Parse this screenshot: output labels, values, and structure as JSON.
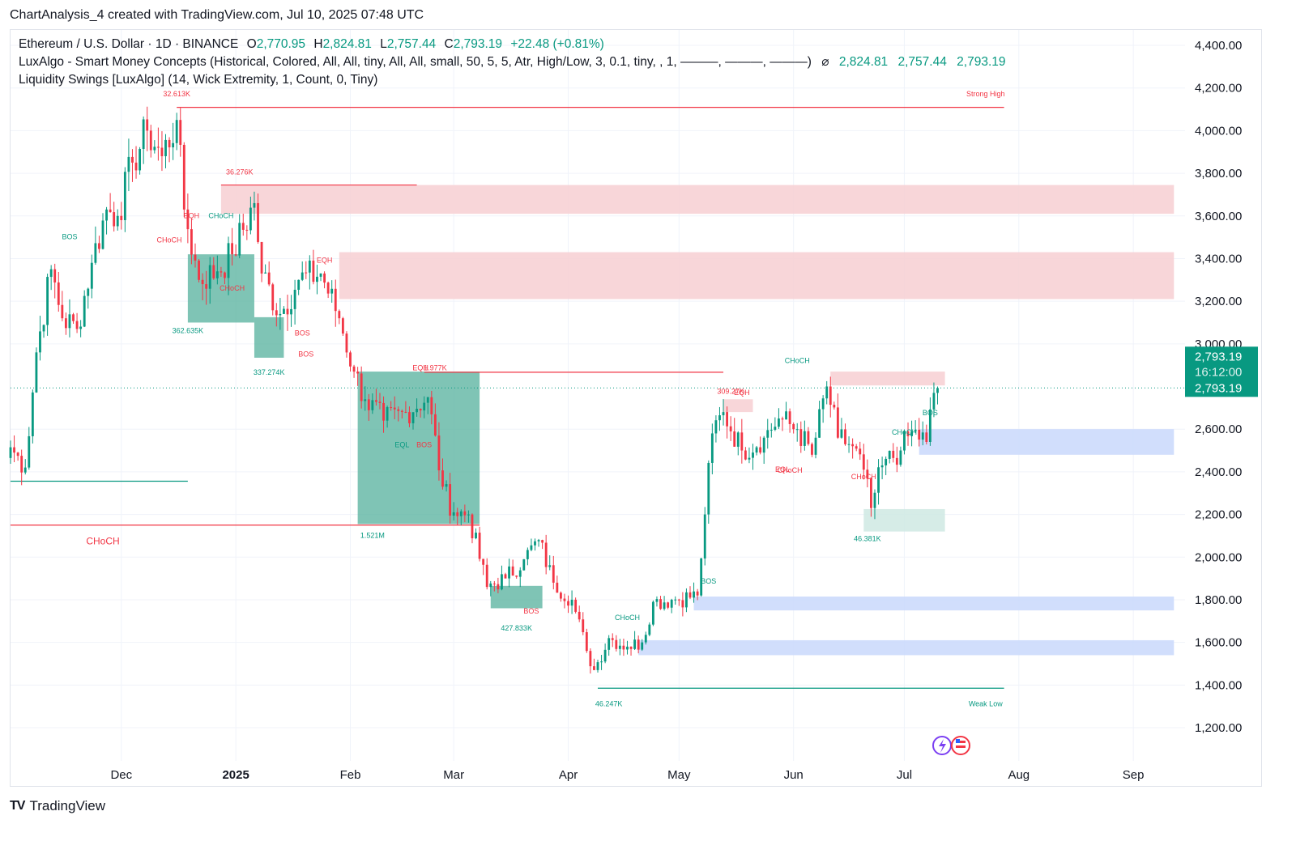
{
  "header": {
    "text": "ChartAnalysis_4 created with TradingView.com, Jul 10, 2025 07:48 UTC"
  },
  "legend": {
    "symbol": "Ethereum / U.S. Dollar · 1D · BINANCE",
    "o_label": "O",
    "o_value": "2,770.95",
    "h_label": "H",
    "h_value": "2,824.81",
    "l_label": "L",
    "l_value": "2,757.44",
    "c_label": "C",
    "c_value": "2,793.19",
    "change": "+22.48 (+0.81%)",
    "indicator1": "LuxAlgo - Smart Money Concepts (Historical, Colored, All, All, tiny, All, All, small, 50, 5, 5, Atr, High/Low, 3, 0.1, tiny, , 1, ———, ———, ———)",
    "indicator1_symbol": "⌀",
    "indicator1_values": [
      "2,824.81",
      "2,757.44",
      "2,793.19"
    ],
    "indicator2": "Liquidity Swings [LuxAlgo] (14, Wick Extremity, 1, Count, 0, Tiny)"
  },
  "footer": {
    "brand": "TradingView",
    "logo": "TV"
  },
  "colors": {
    "up": "#089981",
    "down": "#f23645",
    "zone_red": "#f7cfd2",
    "zone_blue": "#c9d8fb",
    "zone_green": "#5fb5a3",
    "price_tag": "#089981"
  },
  "chart_data": {
    "type": "candlestick",
    "title": "Ethereum / U.S. Dollar · 1D · BINANCE",
    "y_range": [
      1100,
      4500
    ],
    "y_ticks": [
      4400,
      4200,
      4000,
      3800,
      3600,
      3400,
      3200,
      3000,
      2600,
      2400,
      2200,
      2000,
      1800,
      1600,
      1400,
      1200
    ],
    "y_tick_labels": [
      "4,400.00",
      "4,200.00",
      "4,000.00",
      "3,800.00",
      "3,600.00",
      "3,400.00",
      "3,200.00",
      "3,000.00",
      "2,600.00",
      "2,400.00",
      "2,200.00",
      "2,000.00",
      "1,800.00",
      "1,600.00",
      "1,400.00",
      "1,200.00"
    ],
    "x_range": [
      "2024-11-01",
      "2025-09-15"
    ],
    "x_ticks": [
      {
        "date": "2024-12-01",
        "label": "Dec",
        "bold": false
      },
      {
        "date": "2025-01-01",
        "label": "2025",
        "bold": true
      },
      {
        "date": "2025-02-01",
        "label": "Feb",
        "bold": false
      },
      {
        "date": "2025-03-01",
        "label": "Mar",
        "bold": false
      },
      {
        "date": "2025-04-01",
        "label": "Apr",
        "bold": false
      },
      {
        "date": "2025-05-01",
        "label": "May",
        "bold": false
      },
      {
        "date": "2025-06-01",
        "label": "Jun",
        "bold": false
      },
      {
        "date": "2025-07-01",
        "label": "Jul",
        "bold": false
      },
      {
        "date": "2025-08-01",
        "label": "Aug",
        "bold": false
      },
      {
        "date": "2025-09-01",
        "label": "Sep",
        "bold": false
      }
    ],
    "last_price": 2793.19,
    "price_tag": {
      "price": "2,793.19",
      "countdown": "16:12:00",
      "price2": "2,793.19"
    },
    "zones": [
      {
        "from": "2024-12-28",
        "to": "2025-09-12",
        "low": 3610,
        "high": 3745,
        "kind": "supply"
      },
      {
        "from": "2025-01-29",
        "to": "2025-09-12",
        "low": 3210,
        "high": 3430,
        "kind": "supply"
      },
      {
        "from": "2025-06-11",
        "to": "2025-07-12",
        "low": 2805,
        "high": 2870,
        "kind": "supply"
      },
      {
        "from": "2025-05-13",
        "to": "2025-05-21",
        "low": 2680,
        "high": 2740,
        "kind": "supply"
      },
      {
        "from": "2025-07-05",
        "to": "2025-09-12",
        "low": 2480,
        "high": 2600,
        "kind": "demand"
      },
      {
        "from": "2025-05-05",
        "to": "2025-09-12",
        "low": 1750,
        "high": 1815,
        "kind": "demand"
      },
      {
        "from": "2025-04-20",
        "to": "2025-09-12",
        "low": 1540,
        "high": 1610,
        "kind": "demand"
      },
      {
        "from": "2024-12-19",
        "to": "2025-01-06",
        "low": 3100,
        "high": 3420,
        "kind": "volume"
      },
      {
        "from": "2025-01-06",
        "to": "2025-01-14",
        "low": 2935,
        "high": 3125,
        "kind": "volume"
      },
      {
        "from": "2025-02-03",
        "to": "2025-03-08",
        "low": 2155,
        "high": 2870,
        "kind": "volume"
      },
      {
        "from": "2025-03-11",
        "to": "2025-03-25",
        "low": 1760,
        "high": 1865,
        "kind": "volume"
      },
      {
        "from": "2025-06-20",
        "to": "2025-07-12",
        "low": 2120,
        "high": 2225,
        "kind": "volume_light"
      }
    ],
    "lines": [
      {
        "from": "2024-12-16",
        "to": "2025-07-28",
        "price": 4109,
        "color": "down"
      },
      {
        "from": "2024-12-28",
        "to": "2025-02-19",
        "price": 3745,
        "color": "down"
      },
      {
        "from": "2025-02-21",
        "to": "2025-05-13",
        "price": 2867,
        "color": "down"
      },
      {
        "from": "2024-11-01",
        "to": "2025-03-08",
        "price": 2150,
        "color": "down"
      },
      {
        "from": "2024-11-01",
        "to": "2024-12-19",
        "price": 2356,
        "color": "up"
      },
      {
        "from": "2025-04-09",
        "to": "2025-07-28",
        "price": 1385,
        "color": "up"
      }
    ],
    "labels": [
      {
        "date": "2024-12-16",
        "price": 4160,
        "text": "32.613K",
        "color": "down",
        "size": 9
      },
      {
        "date": "2025-07-23",
        "price": 4160,
        "text": "Strong High",
        "color": "down",
        "size": 9
      },
      {
        "date": "2025-01-02",
        "price": 3795,
        "text": "36.276K",
        "color": "down",
        "size": 9
      },
      {
        "date": "2024-12-20",
        "price": 3590,
        "text": "EQH",
        "color": "down",
        "size": 9
      },
      {
        "date": "2024-12-28",
        "price": 3590,
        "text": "CHoCH",
        "color": "up",
        "size": 9
      },
      {
        "date": "2024-12-14",
        "price": 3475,
        "text": "CHoCH",
        "color": "down",
        "size": 9
      },
      {
        "date": "2024-11-17",
        "price": 3490,
        "text": "BOS",
        "color": "up",
        "size": 9
      },
      {
        "date": "2025-01-25",
        "price": 3380,
        "text": "EQH",
        "color": "down",
        "size": 9
      },
      {
        "date": "2024-12-31",
        "price": 3250,
        "text": "CHoCH",
        "color": "down",
        "size": 9
      },
      {
        "date": "2024-12-19",
        "price": 3050,
        "text": "362.635K",
        "color": "up",
        "size": 9
      },
      {
        "date": "2025-01-19",
        "price": 3040,
        "text": "BOS",
        "color": "down",
        "size": 9
      },
      {
        "date": "2025-01-20",
        "price": 2940,
        "text": "BOS",
        "color": "down",
        "size": 9
      },
      {
        "date": "2025-01-10",
        "price": 2855,
        "text": "337.274K",
        "color": "up",
        "size": 9
      },
      {
        "date": "2025-02-20",
        "price": 2875,
        "text": "EQH",
        "color": "down",
        "size": 9
      },
      {
        "date": "2025-02-24",
        "price": 2875,
        "text": "1.977K",
        "color": "down",
        "size": 9
      },
      {
        "date": "2025-02-15",
        "price": 2515,
        "text": "EQL",
        "color": "up",
        "size": 9
      },
      {
        "date": "2025-02-21",
        "price": 2515,
        "text": "BOS",
        "color": "down",
        "size": 9
      },
      {
        "date": "2024-11-26",
        "price": 2060,
        "text": "CHoCH",
        "color": "down",
        "size": 12
      },
      {
        "date": "2025-02-07",
        "price": 2090,
        "text": "1.521M",
        "color": "up",
        "size": 9
      },
      {
        "date": "2025-03-22",
        "price": 1735,
        "text": "BOS",
        "color": "down",
        "size": 9
      },
      {
        "date": "2025-03-18",
        "price": 1655,
        "text": "427.833K",
        "color": "up",
        "size": 9
      },
      {
        "date": "2025-04-17",
        "price": 1705,
        "text": "CHoCH",
        "color": "up",
        "size": 9
      },
      {
        "date": "2025-05-09",
        "price": 1875,
        "text": "BOS",
        "color": "up",
        "size": 9
      },
      {
        "date": "2025-04-12",
        "price": 1300,
        "text": "46.247K",
        "color": "up",
        "size": 9
      },
      {
        "date": "2025-07-23",
        "price": 1300,
        "text": "Weak Low",
        "color": "up",
        "size": 9
      },
      {
        "date": "2025-05-15",
        "price": 2765,
        "text": "309.27K",
        "color": "down",
        "size": 9
      },
      {
        "date": "2025-05-18",
        "price": 2760,
        "text": "EQH",
        "color": "down",
        "size": 9
      },
      {
        "date": "2025-06-02",
        "price": 2910,
        "text": "CHoCH",
        "color": "up",
        "size": 9
      },
      {
        "date": "2025-05-29",
        "price": 2400,
        "text": "EQL",
        "color": "down",
        "size": 9
      },
      {
        "date": "2025-05-31",
        "price": 2395,
        "text": "CHoCH",
        "color": "down",
        "size": 9
      },
      {
        "date": "2025-06-20",
        "price": 2365,
        "text": "CHoCH",
        "color": "down",
        "size": 9
      },
      {
        "date": "2025-07-01",
        "price": 2575,
        "text": "CHoCH",
        "color": "up",
        "size": 9
      },
      {
        "date": "2025-07-08",
        "price": 2665,
        "text": "BOS",
        "color": "up",
        "size": 9
      },
      {
        "date": "2025-06-21",
        "price": 2075,
        "text": "46.381K",
        "color": "up",
        "size": 9
      }
    ],
    "anchors": [
      {
        "date": "2024-11-01",
        "close": 2515
      },
      {
        "date": "2024-11-05",
        "close": 2420
      },
      {
        "date": "2024-11-08",
        "close": 2960
      },
      {
        "date": "2024-11-12",
        "close": 3350
      },
      {
        "date": "2024-11-15",
        "close": 3120
      },
      {
        "date": "2024-11-19",
        "close": 3070
      },
      {
        "date": "2024-11-23",
        "close": 3380
      },
      {
        "date": "2024-11-27",
        "close": 3630
      },
      {
        "date": "2024-11-30",
        "close": 3600
      },
      {
        "date": "2024-12-04",
        "close": 3850
      },
      {
        "date": "2024-12-08",
        "close": 4000
      },
      {
        "date": "2024-12-12",
        "close": 3880
      },
      {
        "date": "2024-12-16",
        "close": 4050
      },
      {
        "date": "2024-12-18",
        "close": 3630
      },
      {
        "date": "2024-12-22",
        "close": 3300
      },
      {
        "date": "2024-12-27",
        "close": 3340
      },
      {
        "date": "2024-12-31",
        "close": 3420
      },
      {
        "date": "2025-01-06",
        "close": 3660
      },
      {
        "date": "2025-01-08",
        "close": 3330
      },
      {
        "date": "2025-01-13",
        "close": 3140
      },
      {
        "date": "2025-01-18",
        "close": 3300
      },
      {
        "date": "2025-01-24",
        "close": 3330
      },
      {
        "date": "2025-01-29",
        "close": 3120
      },
      {
        "date": "2025-02-02",
        "close": 2870
      },
      {
        "date": "2025-02-05",
        "close": 2740
      },
      {
        "date": "2025-02-10",
        "close": 2640
      },
      {
        "date": "2025-02-16",
        "close": 2680
      },
      {
        "date": "2025-02-22",
        "close": 2750
      },
      {
        "date": "2025-02-26",
        "close": 2330
      },
      {
        "date": "2025-03-01",
        "close": 2210
      },
      {
        "date": "2025-03-05",
        "close": 2200
      },
      {
        "date": "2025-03-10",
        "close": 1860
      },
      {
        "date": "2025-03-15",
        "close": 1900
      },
      {
        "date": "2025-03-20",
        "close": 1990
      },
      {
        "date": "2025-03-24",
        "close": 2080
      },
      {
        "date": "2025-03-28",
        "close": 1880
      },
      {
        "date": "2025-04-02",
        "close": 1800
      },
      {
        "date": "2025-04-06",
        "close": 1560
      },
      {
        "date": "2025-04-08",
        "close": 1470
      },
      {
        "date": "2025-04-12",
        "close": 1620
      },
      {
        "date": "2025-04-17",
        "close": 1580
      },
      {
        "date": "2025-04-21",
        "close": 1600
      },
      {
        "date": "2025-04-24",
        "close": 1790
      },
      {
        "date": "2025-04-29",
        "close": 1800
      },
      {
        "date": "2025-05-06",
        "close": 1820
      },
      {
        "date": "2025-05-08",
        "close": 2200
      },
      {
        "date": "2025-05-10",
        "close": 2580
      },
      {
        "date": "2025-05-13",
        "close": 2680
      },
      {
        "date": "2025-05-18",
        "close": 2500
      },
      {
        "date": "2025-05-24",
        "close": 2560
      },
      {
        "date": "2025-05-28",
        "close": 2650
      },
      {
        "date": "2025-06-02",
        "close": 2600
      },
      {
        "date": "2025-06-06",
        "close": 2480
      },
      {
        "date": "2025-06-10",
        "close": 2800
      },
      {
        "date": "2025-06-13",
        "close": 2560
      },
      {
        "date": "2025-06-17",
        "close": 2520
      },
      {
        "date": "2025-06-20",
        "close": 2410
      },
      {
        "date": "2025-06-22",
        "close": 2230
      },
      {
        "date": "2025-06-25",
        "close": 2430
      },
      {
        "date": "2025-06-30",
        "close": 2500
      },
      {
        "date": "2025-07-03",
        "close": 2590
      },
      {
        "date": "2025-07-07",
        "close": 2540
      },
      {
        "date": "2025-07-09",
        "close": 2770
      },
      {
        "date": "2025-07-10",
        "close": 2793
      }
    ]
  }
}
